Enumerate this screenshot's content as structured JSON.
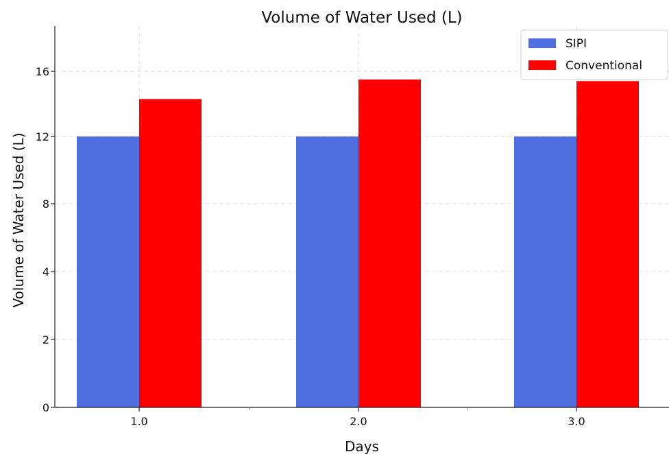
{
  "chart_data": {
    "type": "bar",
    "title": "Volume of Water Used (L)",
    "xlabel": "Days",
    "ylabel": "Volume of Water Used (L)",
    "categories": [
      "1.0",
      "2.0",
      "3.0"
    ],
    "y_ticks": [
      0,
      2,
      4,
      8,
      12,
      16
    ],
    "series": [
      {
        "name": "SIPI",
        "color": "#4f6fe0",
        "values": [
          12,
          12,
          12
        ]
      },
      {
        "name": "Conventional",
        "color": "#ff0000",
        "values": [
          14.3,
          15.5,
          15.4
        ]
      }
    ],
    "grid": true,
    "legend_position": "top-right"
  }
}
